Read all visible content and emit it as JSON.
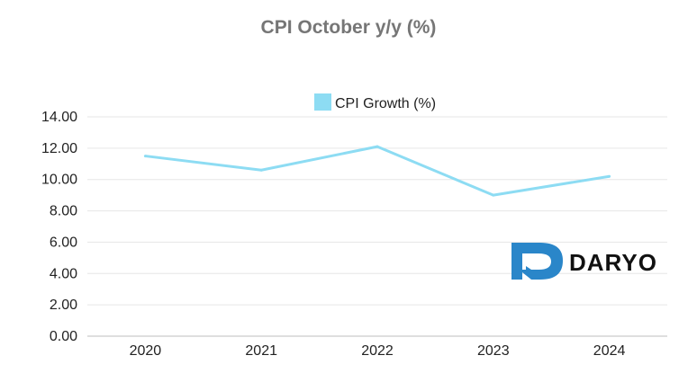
{
  "chart_data": {
    "type": "line",
    "title": "CPI October y/y (%)",
    "categories": [
      "2020",
      "2021",
      "2022",
      "2023",
      "2024"
    ],
    "series": [
      {
        "name": "CPI Growth (%)",
        "values": [
          11.5,
          10.6,
          12.1,
          9.0,
          10.2
        ],
        "color": "#8ddcf3"
      }
    ],
    "ylim": [
      0,
      14
    ],
    "yticks": [
      "0.00",
      "2.00",
      "4.00",
      "6.00",
      "8.00",
      "10.00",
      "12.00",
      "14.00"
    ],
    "grid": true,
    "legend_position": "top-center"
  },
  "watermark": {
    "text": "DARYO",
    "color": "#2a86c9"
  }
}
